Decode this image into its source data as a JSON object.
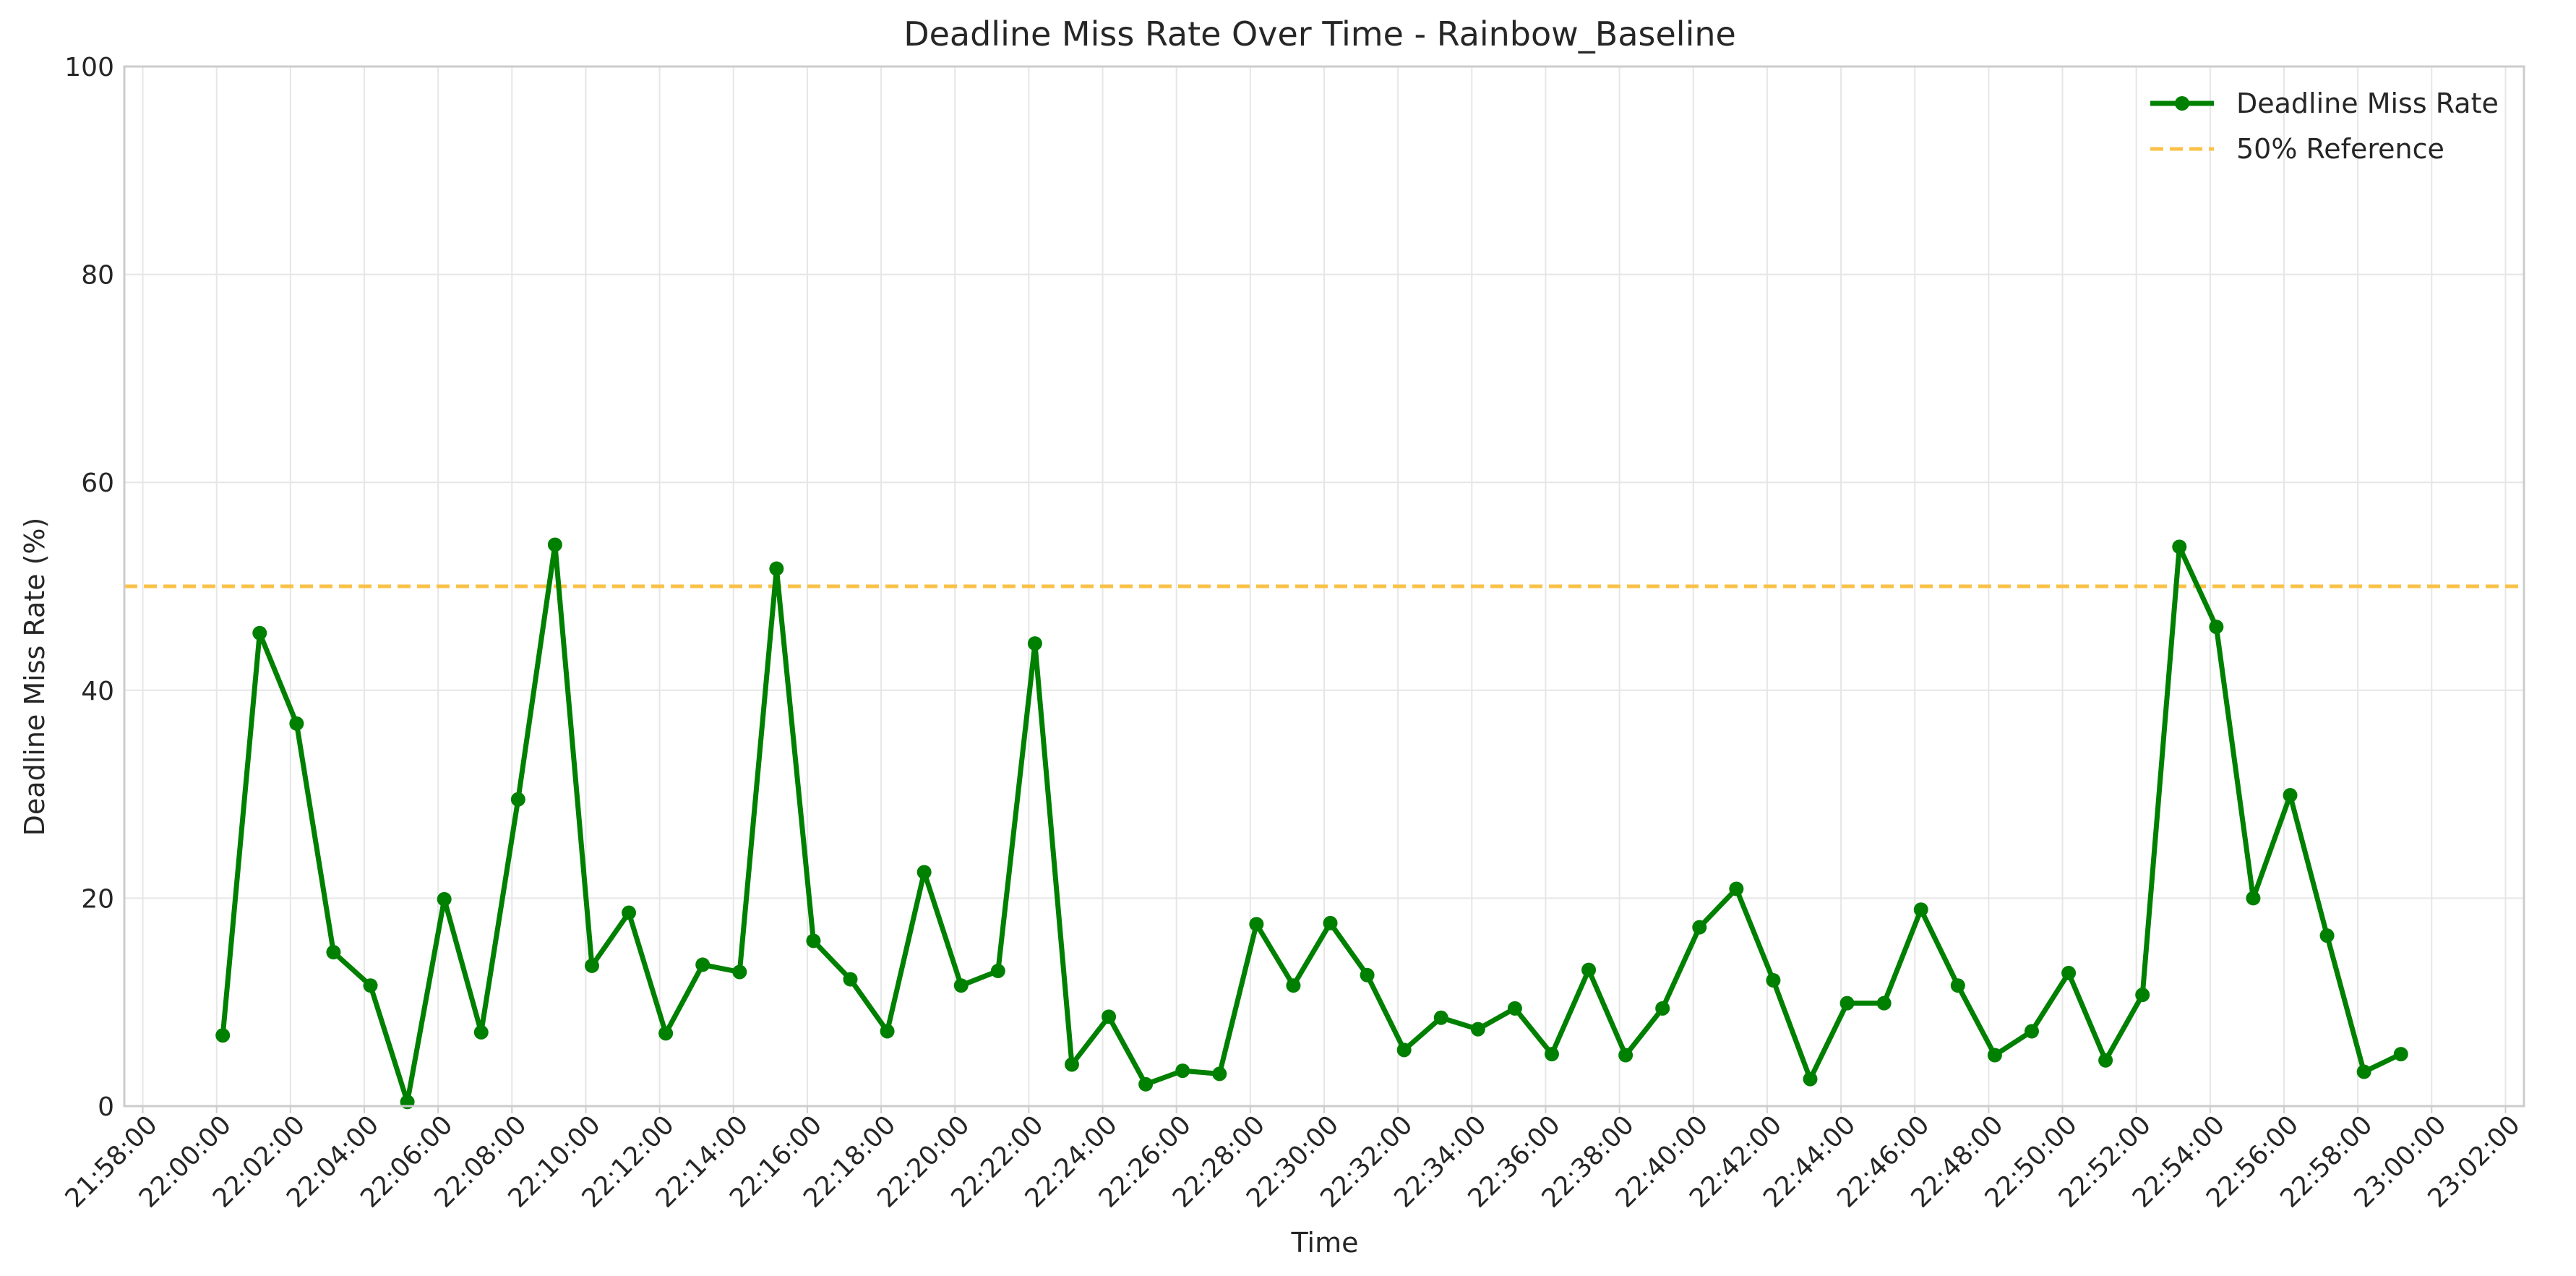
{
  "chart_data": {
    "type": "line",
    "title": "Deadline Miss Rate Over Time - Rainbow_Baseline",
    "xlabel": "Time",
    "ylabel": "Deadline Miss Rate (%)",
    "ylim": [
      0,
      100
    ],
    "yticks": [
      0,
      20,
      40,
      60,
      80,
      100
    ],
    "xlim_minutes": [
      -2.5,
      62.5
    ],
    "xticks": [
      "21:58:00",
      "22:00:00",
      "22:02:00",
      "22:04:00",
      "22:06:00",
      "22:08:00",
      "22:10:00",
      "22:12:00",
      "22:14:00",
      "22:16:00",
      "22:18:00",
      "22:20:00",
      "22:22:00",
      "22:24:00",
      "22:26:00",
      "22:28:00",
      "22:30:00",
      "22:32:00",
      "22:34:00",
      "22:36:00",
      "22:38:00",
      "22:40:00",
      "22:42:00",
      "22:44:00",
      "22:46:00",
      "22:48:00",
      "22:50:00",
      "22:52:00",
      "22:54:00",
      "22:56:00",
      "22:58:00",
      "23:00:00",
      "23:02:00"
    ],
    "grid": true,
    "legend_position": "top-right",
    "series": [
      {
        "name": "Deadline Miss Rate",
        "color": "#008000",
        "x": [
          "22:00:10",
          "22:01:10",
          "22:02:10",
          "22:03:10",
          "22:04:10",
          "22:05:10",
          "22:06:10",
          "22:07:10",
          "22:08:10",
          "22:09:10",
          "22:10:10",
          "22:11:10",
          "22:12:10",
          "22:13:10",
          "22:14:10",
          "22:15:10",
          "22:16:10",
          "22:17:10",
          "22:18:10",
          "22:19:10",
          "22:20:10",
          "22:21:10",
          "22:22:10",
          "22:23:10",
          "22:24:10",
          "22:25:10",
          "22:26:10",
          "22:27:10",
          "22:28:10",
          "22:29:10",
          "22:30:10",
          "22:31:10",
          "22:32:10",
          "22:33:10",
          "22:34:10",
          "22:35:10",
          "22:36:10",
          "22:37:10",
          "22:38:10",
          "22:39:10",
          "22:40:10",
          "22:41:10",
          "22:42:10",
          "22:43:10",
          "22:44:10",
          "22:45:10",
          "22:46:10",
          "22:47:10",
          "22:48:10",
          "22:49:10",
          "22:50:10",
          "22:51:10",
          "22:52:10",
          "22:53:10",
          "22:54:10",
          "22:55:10",
          "22:56:10",
          "22:57:10",
          "22:58:10",
          "22:59:10"
        ],
        "values": [
          6.8,
          45.5,
          36.8,
          14.8,
          11.6,
          0.4,
          19.9,
          7.1,
          29.5,
          54.0,
          13.5,
          18.6,
          7.0,
          13.6,
          12.9,
          51.7,
          15.9,
          12.2,
          7.2,
          22.5,
          11.6,
          13.0,
          44.5,
          4.0,
          8.6,
          2.1,
          3.4,
          3.1,
          17.5,
          11.6,
          17.6,
          12.6,
          5.4,
          8.5,
          7.4,
          9.4,
          5.0,
          13.1,
          4.9,
          9.4,
          17.2,
          20.9,
          12.1,
          2.6,
          9.9,
          9.9,
          18.9,
          11.6,
          4.9,
          7.2,
          12.8,
          4.4,
          10.7,
          53.8,
          46.1,
          20.0,
          29.9,
          16.4,
          3.3,
          5.0
        ]
      },
      {
        "name": "50% Reference",
        "color": "#FBC147",
        "style": "dashed",
        "y": 50
      }
    ]
  }
}
